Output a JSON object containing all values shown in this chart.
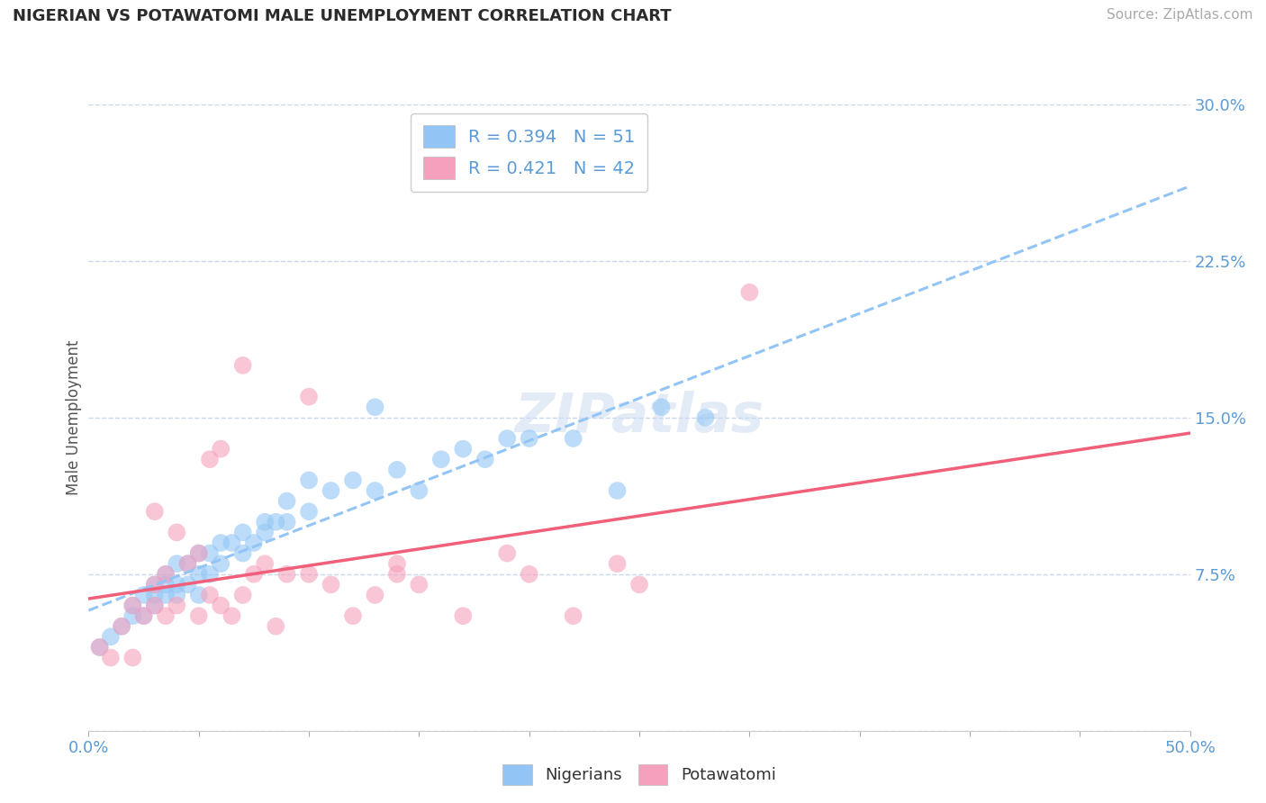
{
  "title": "NIGERIAN VS POTAWATOMI MALE UNEMPLOYMENT CORRELATION CHART",
  "source": "Source: ZipAtlas.com",
  "ylabel": "Male Unemployment",
  "xlim": [
    0.0,
    0.5
  ],
  "ylim": [
    0.0,
    0.3
  ],
  "xticks": [
    0.0,
    0.05,
    0.1,
    0.15,
    0.2,
    0.25,
    0.3,
    0.35,
    0.4,
    0.45,
    0.5
  ],
  "xtick_labels_shown": {
    "0.0": "0.0%",
    "0.50": "50.0%"
  },
  "yticks": [
    0.0,
    0.075,
    0.15,
    0.225,
    0.3
  ],
  "ytick_labels": [
    "",
    "7.5%",
    "15.0%",
    "22.5%",
    "30.0%"
  ],
  "legend_R1": "0.394",
  "legend_N1": "51",
  "legend_R2": "0.421",
  "legend_N2": "42",
  "series1_label": "Nigerians",
  "series2_label": "Potawatomi",
  "series1_color": "#92c5f5",
  "series2_color": "#f5a0bc",
  "line1_color": "#92c5f5",
  "line2_color": "#f0607a",
  "title_color": "#2b2b2b",
  "axis_color": "#5b9bd5",
  "background_color": "#ffffff",
  "grid_color": "#c8d8ea",
  "nigerians_x": [
    0.005,
    0.01,
    0.015,
    0.02,
    0.02,
    0.025,
    0.025,
    0.03,
    0.03,
    0.03,
    0.035,
    0.035,
    0.035,
    0.04,
    0.04,
    0.04,
    0.045,
    0.045,
    0.05,
    0.05,
    0.05,
    0.055,
    0.055,
    0.06,
    0.06,
    0.065,
    0.07,
    0.07,
    0.075,
    0.08,
    0.08,
    0.085,
    0.09,
    0.09,
    0.1,
    0.1,
    0.11,
    0.12,
    0.13,
    0.14,
    0.15,
    0.16,
    0.17,
    0.18,
    0.19,
    0.2,
    0.22,
    0.24,
    0.26,
    0.28,
    0.13
  ],
  "nigerians_y": [
    0.04,
    0.045,
    0.05,
    0.055,
    0.06,
    0.055,
    0.065,
    0.06,
    0.065,
    0.07,
    0.065,
    0.07,
    0.075,
    0.065,
    0.07,
    0.08,
    0.07,
    0.08,
    0.065,
    0.075,
    0.085,
    0.075,
    0.085,
    0.08,
    0.09,
    0.09,
    0.085,
    0.095,
    0.09,
    0.095,
    0.1,
    0.1,
    0.1,
    0.11,
    0.105,
    0.12,
    0.115,
    0.12,
    0.115,
    0.125,
    0.115,
    0.13,
    0.135,
    0.13,
    0.14,
    0.14,
    0.14,
    0.115,
    0.155,
    0.15,
    0.155
  ],
  "potawatomi_x": [
    0.005,
    0.01,
    0.015,
    0.02,
    0.02,
    0.025,
    0.03,
    0.03,
    0.03,
    0.035,
    0.035,
    0.04,
    0.04,
    0.045,
    0.05,
    0.05,
    0.055,
    0.055,
    0.06,
    0.065,
    0.07,
    0.075,
    0.08,
    0.085,
    0.09,
    0.1,
    0.11,
    0.12,
    0.13,
    0.14,
    0.15,
    0.17,
    0.19,
    0.2,
    0.22,
    0.24,
    0.25,
    0.1,
    0.14,
    0.3,
    0.07,
    0.06
  ],
  "potawatomi_y": [
    0.04,
    0.035,
    0.05,
    0.035,
    0.06,
    0.055,
    0.06,
    0.07,
    0.105,
    0.055,
    0.075,
    0.06,
    0.095,
    0.08,
    0.055,
    0.085,
    0.065,
    0.13,
    0.06,
    0.055,
    0.065,
    0.075,
    0.08,
    0.05,
    0.075,
    0.075,
    0.07,
    0.055,
    0.065,
    0.08,
    0.07,
    0.055,
    0.085,
    0.075,
    0.055,
    0.08,
    0.07,
    0.16,
    0.075,
    0.21,
    0.175,
    0.135
  ]
}
